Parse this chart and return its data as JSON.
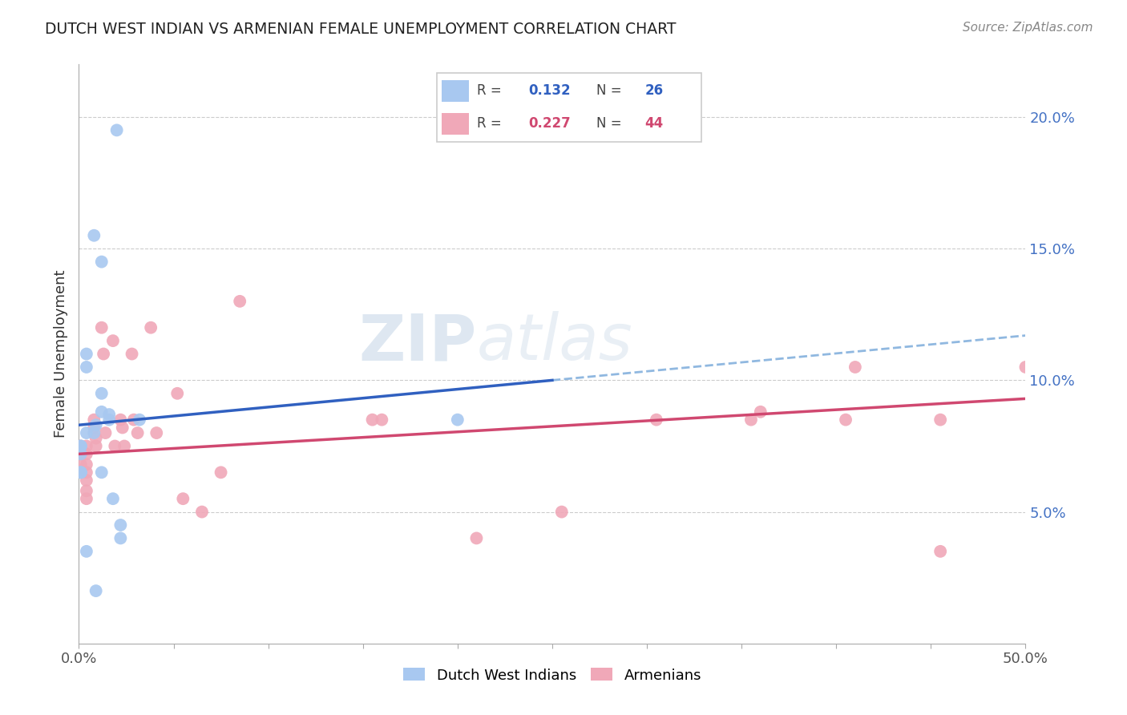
{
  "title": "DUTCH WEST INDIAN VS ARMENIAN FEMALE UNEMPLOYMENT CORRELATION CHART",
  "source": "Source: ZipAtlas.com",
  "ylabel": "Female Unemployment",
  "xlim": [
    0.0,
    0.5
  ],
  "ylim": [
    0.0,
    0.22
  ],
  "blue_color": "#A8C8F0",
  "pink_color": "#F0A8B8",
  "blue_line_color": "#3060C0",
  "pink_line_color": "#D04870",
  "dashed_line_color": "#90B8E0",
  "watermark_zip": "ZIP",
  "watermark_atlas": "atlas",
  "dutch_west_indians_x": [
    0.02,
    0.008,
    0.012,
    0.001,
    0.001,
    0.001,
    0.001,
    0.001,
    0.004,
    0.004,
    0.004,
    0.008,
    0.009,
    0.012,
    0.016,
    0.016,
    0.012,
    0.001,
    0.012,
    0.018,
    0.022,
    0.022,
    0.032,
    0.2,
    0.004,
    0.009
  ],
  "dutch_west_indians_y": [
    0.195,
    0.155,
    0.145,
    0.075,
    0.072,
    0.075,
    0.065,
    0.065,
    0.11,
    0.105,
    0.08,
    0.08,
    0.083,
    0.088,
    0.085,
    0.087,
    0.095,
    0.065,
    0.065,
    0.055,
    0.045,
    0.04,
    0.085,
    0.085,
    0.035,
    0.02
  ],
  "armenians_x": [
    0.001,
    0.001,
    0.001,
    0.004,
    0.004,
    0.004,
    0.004,
    0.004,
    0.004,
    0.004,
    0.008,
    0.008,
    0.009,
    0.009,
    0.012,
    0.013,
    0.014,
    0.018,
    0.019,
    0.022,
    0.023,
    0.024,
    0.028,
    0.029,
    0.031,
    0.038,
    0.041,
    0.052,
    0.055,
    0.065,
    0.075,
    0.085,
    0.155,
    0.16,
    0.21,
    0.255,
    0.305,
    0.355,
    0.36,
    0.405,
    0.41,
    0.455,
    0.455,
    0.5
  ],
  "armenians_y": [
    0.075,
    0.072,
    0.068,
    0.075,
    0.072,
    0.068,
    0.065,
    0.062,
    0.058,
    0.055,
    0.085,
    0.082,
    0.078,
    0.075,
    0.12,
    0.11,
    0.08,
    0.115,
    0.075,
    0.085,
    0.082,
    0.075,
    0.11,
    0.085,
    0.08,
    0.12,
    0.08,
    0.095,
    0.055,
    0.05,
    0.065,
    0.13,
    0.085,
    0.085,
    0.04,
    0.05,
    0.085,
    0.085,
    0.088,
    0.085,
    0.105,
    0.085,
    0.035,
    0.105
  ],
  "blue_intercept": 0.083,
  "blue_slope": 0.068,
  "pink_intercept": 0.072,
  "pink_slope": 0.042
}
